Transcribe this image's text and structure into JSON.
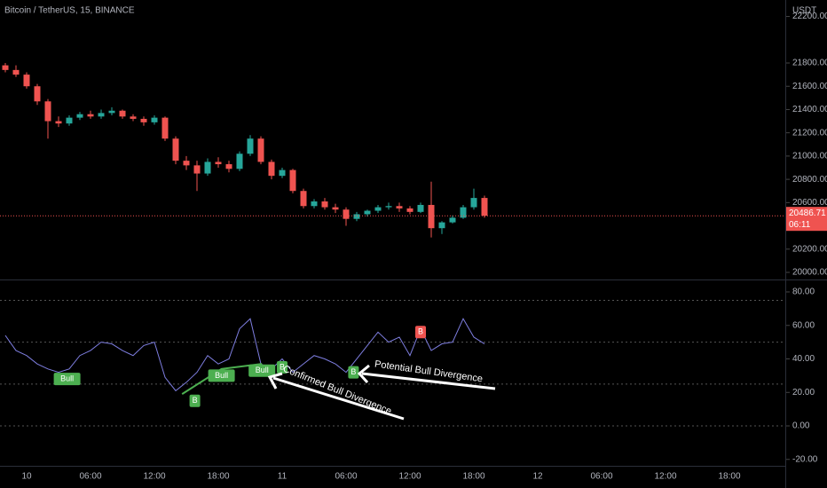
{
  "header": {
    "symbol": "Bitcoin / TetherUS, 15, BINANCE",
    "currency": "USDT"
  },
  "chart_data": [
    {
      "type": "candlestick",
      "x": [
        -2,
        -1,
        0,
        1,
        2,
        3,
        4,
        5,
        6,
        7,
        8,
        9,
        10,
        11,
        12,
        13,
        14,
        15,
        16,
        17,
        18,
        19,
        20,
        21,
        22,
        23,
        24,
        25,
        26,
        27,
        28,
        29,
        30,
        31,
        32,
        33,
        34,
        35,
        36,
        37,
        38,
        39,
        40,
        41,
        42,
        43
      ],
      "open": [
        21780,
        21740,
        21700,
        21600,
        21470,
        21300,
        21280,
        21330,
        21360,
        21340,
        21370,
        21390,
        21340,
        21320,
        21290,
        21330,
        21150,
        20960,
        20920,
        20850,
        20950,
        20930,
        20890,
        21020,
        21150,
        20950,
        20830,
        20880,
        20700,
        20570,
        20610,
        20560,
        20540,
        20460,
        20500,
        20530,
        20560,
        20570,
        20550,
        20520,
        20580,
        20380,
        20430,
        20470,
        20560,
        20640
      ],
      "high": [
        21800,
        21780,
        21720,
        21620,
        21490,
        21340,
        21350,
        21380,
        21390,
        21400,
        21420,
        21400,
        21360,
        21340,
        21350,
        21340,
        21170,
        21000,
        20960,
        20980,
        20990,
        20960,
        21040,
        21180,
        21170,
        20970,
        20900,
        20890,
        20720,
        20630,
        20640,
        20590,
        20560,
        20520,
        20540,
        20580,
        20600,
        20600,
        20570,
        20600,
        20780,
        20440,
        20490,
        20580,
        20720,
        20660
      ],
      "low": [
        21720,
        21680,
        21580,
        21440,
        21150,
        21250,
        21260,
        21310,
        21320,
        21320,
        21350,
        21320,
        21300,
        21260,
        21270,
        21130,
        20930,
        20880,
        20700,
        20830,
        20900,
        20860,
        20870,
        21000,
        20930,
        20800,
        20810,
        20680,
        20550,
        20550,
        20540,
        20510,
        20400,
        20440,
        20480,
        20510,
        20540,
        20520,
        20500,
        20510,
        20300,
        20330,
        20420,
        20460,
        20540,
        20470
      ],
      "close": [
        21740,
        21700,
        21600,
        21470,
        21300,
        21280,
        21330,
        21360,
        21340,
        21370,
        21390,
        21340,
        21320,
        21290,
        21330,
        21150,
        20960,
        20920,
        20850,
        20950,
        20930,
        20890,
        21020,
        21150,
        20950,
        20830,
        20880,
        20700,
        20570,
        20610,
        20560,
        20540,
        20460,
        20500,
        20530,
        20560,
        20570,
        20550,
        20520,
        20580,
        20380,
        20430,
        20470,
        20560,
        20640,
        20487
      ],
      "up_color": "#26a69a",
      "down_color": "#ef5350",
      "xlim": [
        -2.5,
        71.25
      ],
      "ylim": [
        19939,
        22341.5
      ],
      "yticks": [
        {
          "value": 20000,
          "label": "20000.00"
        },
        {
          "value": 20200,
          "label": "20200.00"
        },
        {
          "value": 20600,
          "label": "20600.00"
        },
        {
          "value": 20800,
          "label": "20800.00"
        },
        {
          "value": 21000,
          "label": "21000.00"
        },
        {
          "value": 21200,
          "label": "21200.00"
        },
        {
          "value": 21400,
          "label": "21400.00"
        },
        {
          "value": 21600,
          "label": "21600.00"
        },
        {
          "value": 21800,
          "label": "21800.00"
        },
        {
          "value": 22200,
          "label": "22200.00"
        }
      ],
      "last_price": 20486.71,
      "countdown": "06:11"
    },
    {
      "type": "line",
      "x": [
        -2,
        -1,
        0,
        1,
        2,
        3,
        4,
        5,
        6,
        7,
        8,
        9,
        10,
        11,
        12,
        13,
        14,
        15,
        16,
        17,
        18,
        19,
        20,
        21,
        22,
        23,
        24,
        25,
        26,
        27,
        28,
        29,
        30,
        31,
        32,
        33,
        34,
        35,
        36,
        37,
        38,
        39,
        40,
        41,
        42,
        43
      ],
      "values": [
        54,
        45,
        42,
        37,
        34,
        32,
        34,
        42,
        45,
        50,
        49,
        45,
        42,
        48,
        50,
        29,
        21,
        26,
        32,
        42,
        37,
        40,
        58,
        64,
        37,
        34,
        40,
        32,
        37,
        42,
        40,
        37,
        32,
        40,
        48,
        56,
        50,
        53,
        42,
        58,
        45,
        49,
        50,
        64,
        53,
        49
      ],
      "color": "#7e7ee0",
      "xlim": [
        -2.5,
        71.25
      ],
      "ylim": [
        -23.84,
        86.36
      ],
      "yticks": [
        {
          "value": -20,
          "label": "-20.00"
        },
        {
          "value": 0,
          "label": "0.00"
        },
        {
          "value": 20,
          "label": "20.00"
        },
        {
          "value": 40,
          "label": "40.00"
        },
        {
          "value": 60,
          "label": "60.00"
        },
        {
          "value": 80,
          "label": "80.00"
        }
      ],
      "levels": [
        75,
        50,
        25,
        0
      ],
      "xticks": [
        {
          "value": 0,
          "label": "10"
        },
        {
          "value": 6,
          "label": "06:00"
        },
        {
          "value": 12,
          "label": "12:00"
        },
        {
          "value": 18,
          "label": "18:00"
        },
        {
          "value": 24,
          "label": "11"
        },
        {
          "value": 30,
          "label": "06:00"
        },
        {
          "value": 36,
          "label": "12:00"
        },
        {
          "value": 42,
          "label": "18:00"
        },
        {
          "value": 48,
          "label": "12"
        },
        {
          "value": 54,
          "label": "06:00"
        },
        {
          "value": 60,
          "label": "12:00"
        },
        {
          "value": 66,
          "label": "18:00"
        }
      ],
      "divergence": {
        "color": "#4caf50",
        "x": [
          14.6,
          18.3,
          22.1
        ],
        "values": [
          19,
          34,
          37
        ]
      },
      "signals": [
        {
          "label": "Bull",
          "x": 3.8,
          "y": 28,
          "color": "#4caf50"
        },
        {
          "label": "Bull",
          "x": 18.3,
          "y": 30,
          "color": "#4caf50"
        },
        {
          "label": "Bull",
          "x": 22.1,
          "y": 33,
          "color": "#4caf50"
        },
        {
          "label": "B",
          "x": 15.8,
          "y": 15,
          "color": "#4caf50"
        },
        {
          "label": "B",
          "x": 24,
          "y": 35,
          "color": "#4caf50"
        },
        {
          "label": "B",
          "x": 30.7,
          "y": 32,
          "color": "#4caf50"
        },
        {
          "label": "B",
          "x": 37,
          "y": 56,
          "color": "#ef5350"
        }
      ],
      "annotations": [
        "Confirmed Bull Divergence",
        "Potential Bull Divergence"
      ]
    }
  ]
}
